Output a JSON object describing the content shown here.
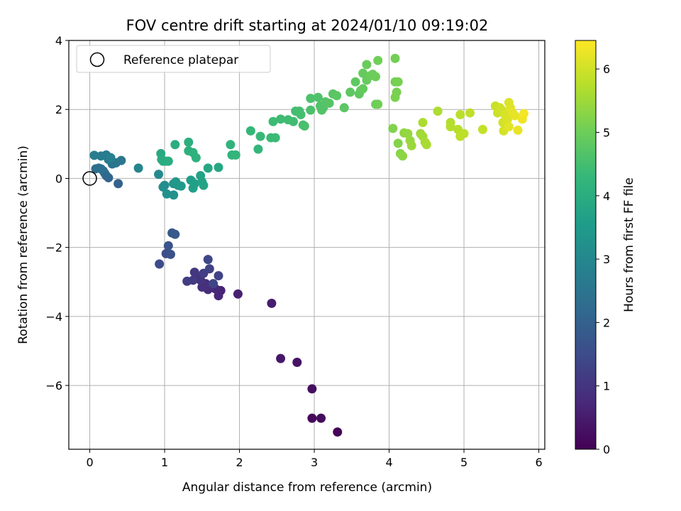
{
  "chart_data": {
    "type": "scatter",
    "title": "FOV centre drift starting at 2024/01/10 09:19:02",
    "xlabel": "Angular distance from reference (arcmin)",
    "ylabel": "Rotation from reference (arcmin)",
    "xlim": [
      -0.28,
      6.08
    ],
    "ylim": [
      -7.85,
      4.0
    ],
    "xticks": [
      "0",
      "1",
      "2",
      "3",
      "4",
      "5",
      "6"
    ],
    "yticks": [
      "−6",
      "−4",
      "−2",
      "0",
      "2",
      "4"
    ],
    "grid": true,
    "legend": {
      "placement": "top-left",
      "label": "Reference platepar"
    },
    "reference_point": {
      "x": 0,
      "y": 0
    },
    "colorbar": {
      "label": "Hours from first FF file",
      "range": [
        0,
        6.45
      ],
      "ticks": [
        "0",
        "1",
        "2",
        "3",
        "4",
        "5",
        "6"
      ],
      "colormap": "viridis"
    },
    "colormap_stops": [
      "#440154",
      "#482878",
      "#3e4989",
      "#31688e",
      "#26828e",
      "#1f9e89",
      "#35b779",
      "#6ece58",
      "#b5de2b",
      "#fde725"
    ],
    "points": [
      {
        "x": 3.31,
        "y": -7.35,
        "c": 0.05
      },
      {
        "x": 2.97,
        "y": -6.95,
        "c": 0.12
      },
      {
        "x": 3.09,
        "y": -6.95,
        "c": 0.18
      },
      {
        "x": 2.97,
        "y": -6.1,
        "c": 0.25
      },
      {
        "x": 2.77,
        "y": -5.33,
        "c": 0.33
      },
      {
        "x": 2.55,
        "y": -5.22,
        "c": 0.4
      },
      {
        "x": 2.43,
        "y": -3.62,
        "c": 0.5
      },
      {
        "x": 1.98,
        "y": -3.35,
        "c": 0.58
      },
      {
        "x": 1.75,
        "y": -3.25,
        "c": 0.65
      },
      {
        "x": 1.72,
        "y": -3.4,
        "c": 0.7
      },
      {
        "x": 1.68,
        "y": -3.2,
        "c": 0.74
      },
      {
        "x": 1.62,
        "y": -3.1,
        "c": 0.78
      },
      {
        "x": 1.58,
        "y": -3.22,
        "c": 0.82
      },
      {
        "x": 1.55,
        "y": -3.05,
        "c": 0.86
      },
      {
        "x": 1.5,
        "y": -3.15,
        "c": 0.9
      },
      {
        "x": 1.48,
        "y": -2.95,
        "c": 0.95
      },
      {
        "x": 1.45,
        "y": -2.85,
        "c": 1.0
      },
      {
        "x": 1.4,
        "y": -2.72,
        "c": 1.05
      },
      {
        "x": 1.38,
        "y": -2.95,
        "c": 1.1
      },
      {
        "x": 1.3,
        "y": -2.98,
        "c": 1.15
      },
      {
        "x": 1.52,
        "y": -2.75,
        "c": 1.2
      },
      {
        "x": 1.6,
        "y": -2.62,
        "c": 1.25
      },
      {
        "x": 1.72,
        "y": -2.82,
        "c": 1.3
      },
      {
        "x": 1.65,
        "y": -3.05,
        "c": 1.35
      },
      {
        "x": 1.58,
        "y": -2.35,
        "c": 1.4
      },
      {
        "x": 0.93,
        "y": -2.48,
        "c": 1.5
      },
      {
        "x": 1.02,
        "y": -2.18,
        "c": 1.58
      },
      {
        "x": 1.08,
        "y": -2.2,
        "c": 1.62
      },
      {
        "x": 1.05,
        "y": -1.95,
        "c": 1.68
      },
      {
        "x": 1.1,
        "y": -1.58,
        "c": 1.75
      },
      {
        "x": 1.14,
        "y": -1.62,
        "c": 1.8
      },
      {
        "x": 0.38,
        "y": -0.15,
        "c": 2.0
      },
      {
        "x": 0.25,
        "y": 0.02,
        "c": 2.08
      },
      {
        "x": 0.22,
        "y": 0.08,
        "c": 2.12
      },
      {
        "x": 0.2,
        "y": 0.15,
        "c": 2.18
      },
      {
        "x": 0.18,
        "y": 0.22,
        "c": 2.22
      },
      {
        "x": 0.12,
        "y": 0.3,
        "c": 2.28
      },
      {
        "x": 0.08,
        "y": 0.28,
        "c": 2.32
      },
      {
        "x": 0.15,
        "y": 0.28,
        "c": 2.38
      },
      {
        "x": 0.3,
        "y": 0.42,
        "c": 2.45
      },
      {
        "x": 0.35,
        "y": 0.45,
        "c": 2.5
      },
      {
        "x": 0.42,
        "y": 0.52,
        "c": 2.55
      },
      {
        "x": 0.25,
        "y": 0.55,
        "c": 2.6
      },
      {
        "x": 0.22,
        "y": 0.68,
        "c": 2.65
      },
      {
        "x": 0.15,
        "y": 0.65,
        "c": 2.7
      },
      {
        "x": 0.06,
        "y": 0.67,
        "c": 2.75
      },
      {
        "x": 0.28,
        "y": 0.6,
        "c": 2.8
      },
      {
        "x": 0.65,
        "y": 0.3,
        "c": 2.95
      },
      {
        "x": 0.92,
        "y": 0.12,
        "c": 3.05
      },
      {
        "x": 1.0,
        "y": -0.2,
        "c": 3.12
      },
      {
        "x": 0.98,
        "y": -0.25,
        "c": 3.18
      },
      {
        "x": 1.03,
        "y": -0.45,
        "c": 3.22
      },
      {
        "x": 1.12,
        "y": -0.48,
        "c": 3.28
      },
      {
        "x": 1.12,
        "y": -0.15,
        "c": 3.32
      },
      {
        "x": 1.18,
        "y": -0.2,
        "c": 3.38
      },
      {
        "x": 1.15,
        "y": -0.1,
        "c": 3.42
      },
      {
        "x": 1.22,
        "y": -0.22,
        "c": 3.48
      },
      {
        "x": 1.35,
        "y": -0.05,
        "c": 3.55
      },
      {
        "x": 1.4,
        "y": -0.15,
        "c": 3.6
      },
      {
        "x": 1.38,
        "y": -0.28,
        "c": 3.65
      },
      {
        "x": 1.5,
        "y": -0.1,
        "c": 3.7
      },
      {
        "x": 1.48,
        "y": 0.08,
        "c": 3.72
      },
      {
        "x": 1.52,
        "y": -0.2,
        "c": 3.76
      },
      {
        "x": 1.58,
        "y": 0.3,
        "c": 3.8
      },
      {
        "x": 1.72,
        "y": 0.32,
        "c": 3.85
      },
      {
        "x": 0.95,
        "y": 0.72,
        "c": 3.9
      },
      {
        "x": 0.98,
        "y": 0.5,
        "c": 3.92
      },
      {
        "x": 0.96,
        "y": 0.55,
        "c": 3.95
      },
      {
        "x": 1.02,
        "y": 0.5,
        "c": 3.98
      },
      {
        "x": 1.05,
        "y": 0.5,
        "c": 4.0
      },
      {
        "x": 1.14,
        "y": 0.98,
        "c": 4.02
      },
      {
        "x": 1.32,
        "y": 1.05,
        "c": 4.05
      },
      {
        "x": 1.32,
        "y": 0.8,
        "c": 4.08
      },
      {
        "x": 1.38,
        "y": 0.75,
        "c": 4.1
      },
      {
        "x": 1.42,
        "y": 0.6,
        "c": 4.12
      },
      {
        "x": 1.88,
        "y": 0.98,
        "c": 4.18
      },
      {
        "x": 1.9,
        "y": 0.68,
        "c": 4.2
      },
      {
        "x": 1.95,
        "y": 0.68,
        "c": 4.22
      },
      {
        "x": 2.25,
        "y": 0.85,
        "c": 4.26
      },
      {
        "x": 2.15,
        "y": 1.38,
        "c": 4.3
      },
      {
        "x": 2.28,
        "y": 1.22,
        "c": 4.33
      },
      {
        "x": 2.42,
        "y": 1.18,
        "c": 4.36
      },
      {
        "x": 2.48,
        "y": 1.18,
        "c": 4.38
      },
      {
        "x": 2.45,
        "y": 1.65,
        "c": 4.4
      },
      {
        "x": 2.55,
        "y": 1.72,
        "c": 4.42
      },
      {
        "x": 2.65,
        "y": 1.7,
        "c": 4.44
      },
      {
        "x": 2.72,
        "y": 1.65,
        "c": 4.46
      },
      {
        "x": 2.75,
        "y": 1.95,
        "c": 4.48
      },
      {
        "x": 2.8,
        "y": 1.95,
        "c": 4.5
      },
      {
        "x": 2.82,
        "y": 1.85,
        "c": 4.52
      },
      {
        "x": 2.85,
        "y": 1.55,
        "c": 4.54
      },
      {
        "x": 2.87,
        "y": 1.52,
        "c": 4.56
      },
      {
        "x": 2.95,
        "y": 1.98,
        "c": 4.58
      },
      {
        "x": 2.95,
        "y": 2.32,
        "c": 4.6
      },
      {
        "x": 3.05,
        "y": 2.35,
        "c": 4.62
      },
      {
        "x": 3.08,
        "y": 2.1,
        "c": 4.64
      },
      {
        "x": 3.1,
        "y": 1.98,
        "c": 4.66
      },
      {
        "x": 3.12,
        "y": 2.05,
        "c": 4.68
      },
      {
        "x": 3.15,
        "y": 2.22,
        "c": 4.7
      },
      {
        "x": 3.2,
        "y": 2.18,
        "c": 4.72
      },
      {
        "x": 3.25,
        "y": 2.45,
        "c": 4.74
      },
      {
        "x": 3.3,
        "y": 2.4,
        "c": 4.76
      },
      {
        "x": 3.4,
        "y": 2.05,
        "c": 4.78
      },
      {
        "x": 3.48,
        "y": 2.5,
        "c": 4.8
      },
      {
        "x": 3.55,
        "y": 2.8,
        "c": 4.82
      },
      {
        "x": 3.6,
        "y": 2.45,
        "c": 4.84
      },
      {
        "x": 3.62,
        "y": 2.55,
        "c": 4.86
      },
      {
        "x": 3.65,
        "y": 2.6,
        "c": 4.88
      },
      {
        "x": 3.65,
        "y": 3.05,
        "c": 4.9
      },
      {
        "x": 3.7,
        "y": 2.85,
        "c": 4.92
      },
      {
        "x": 3.7,
        "y": 3.3,
        "c": 4.94
      },
      {
        "x": 3.75,
        "y": 2.98,
        "c": 4.96
      },
      {
        "x": 3.78,
        "y": 3.02,
        "c": 4.98
      },
      {
        "x": 3.82,
        "y": 2.95,
        "c": 5.0
      },
      {
        "x": 3.82,
        "y": 2.15,
        "c": 5.02
      },
      {
        "x": 3.85,
        "y": 2.15,
        "c": 5.03
      },
      {
        "x": 3.85,
        "y": 3.42,
        "c": 5.04
      },
      {
        "x": 4.08,
        "y": 3.48,
        "c": 5.06
      },
      {
        "x": 4.08,
        "y": 2.8,
        "c": 5.08
      },
      {
        "x": 4.12,
        "y": 2.8,
        "c": 5.1
      },
      {
        "x": 4.1,
        "y": 2.5,
        "c": 5.12
      },
      {
        "x": 4.08,
        "y": 2.35,
        "c": 5.14
      },
      {
        "x": 4.05,
        "y": 1.45,
        "c": 5.2
      },
      {
        "x": 4.12,
        "y": 1.02,
        "c": 5.24
      },
      {
        "x": 4.15,
        "y": 0.72,
        "c": 5.28
      },
      {
        "x": 4.18,
        "y": 0.65,
        "c": 5.32
      },
      {
        "x": 4.2,
        "y": 1.32,
        "c": 5.36
      },
      {
        "x": 4.25,
        "y": 1.3,
        "c": 5.4
      },
      {
        "x": 4.28,
        "y": 1.1,
        "c": 5.44
      },
      {
        "x": 4.3,
        "y": 0.95,
        "c": 5.48
      },
      {
        "x": 4.42,
        "y": 1.3,
        "c": 5.52
      },
      {
        "x": 4.45,
        "y": 1.22,
        "c": 5.56
      },
      {
        "x": 4.48,
        "y": 1.05,
        "c": 5.6
      },
      {
        "x": 4.5,
        "y": 0.98,
        "c": 5.62
      },
      {
        "x": 4.45,
        "y": 1.62,
        "c": 5.64
      },
      {
        "x": 4.65,
        "y": 1.95,
        "c": 5.66
      },
      {
        "x": 4.82,
        "y": 1.62,
        "c": 5.7
      },
      {
        "x": 4.82,
        "y": 1.5,
        "c": 5.72
      },
      {
        "x": 4.92,
        "y": 1.42,
        "c": 5.75
      },
      {
        "x": 4.95,
        "y": 1.85,
        "c": 5.78
      },
      {
        "x": 4.95,
        "y": 1.22,
        "c": 5.8
      },
      {
        "x": 5.0,
        "y": 1.3,
        "c": 5.82
      },
      {
        "x": 5.08,
        "y": 1.9,
        "c": 5.84
      },
      {
        "x": 5.25,
        "y": 1.42,
        "c": 5.88
      },
      {
        "x": 5.42,
        "y": 2.1,
        "c": 5.92
      },
      {
        "x": 5.45,
        "y": 1.9,
        "c": 5.95
      },
      {
        "x": 5.48,
        "y": 2.05,
        "c": 5.98
      },
      {
        "x": 5.5,
        "y": 2.0,
        "c": 6.0
      },
      {
        "x": 5.52,
        "y": 1.62,
        "c": 6.02
      },
      {
        "x": 5.53,
        "y": 1.38,
        "c": 6.05
      },
      {
        "x": 5.55,
        "y": 1.85,
        "c": 6.08
      },
      {
        "x": 5.58,
        "y": 1.7,
        "c": 6.1
      },
      {
        "x": 5.6,
        "y": 2.2,
        "c": 6.12
      },
      {
        "x": 5.62,
        "y": 2.05,
        "c": 6.15
      },
      {
        "x": 5.6,
        "y": 1.5,
        "c": 6.18
      },
      {
        "x": 5.65,
        "y": 1.9,
        "c": 6.2
      },
      {
        "x": 5.68,
        "y": 1.82,
        "c": 6.22
      },
      {
        "x": 5.72,
        "y": 1.4,
        "c": 6.25
      },
      {
        "x": 5.78,
        "y": 1.72,
        "c": 6.3
      },
      {
        "x": 5.8,
        "y": 1.88,
        "c": 6.35
      }
    ]
  }
}
